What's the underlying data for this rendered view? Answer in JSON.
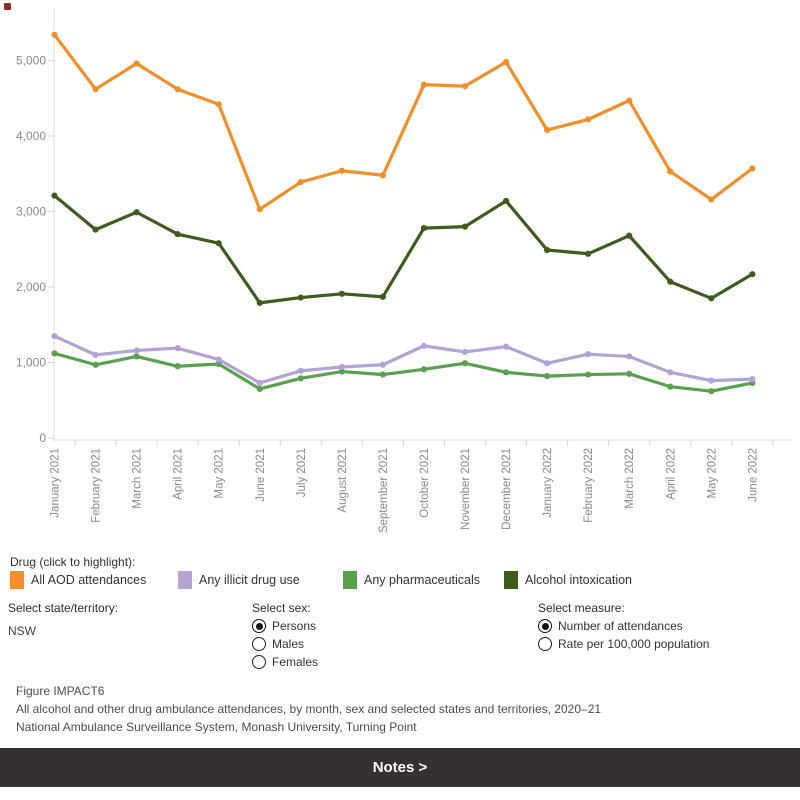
{
  "chart_data": {
    "type": "line",
    "x": [
      "January 2021",
      "February 2021",
      "March 2021",
      "April 2021",
      "May 2021",
      "June 2021",
      "July 2021",
      "August 2021",
      "September 2021",
      "October 2021",
      "November 2021",
      "December 2021",
      "January 2022",
      "February 2022",
      "March 2022",
      "April 2022",
      "May 2022",
      "June 2022"
    ],
    "series": [
      {
        "name": "All AOD attendances",
        "color": "#f28e2b",
        "values": [
          5340,
          4620,
          4960,
          4620,
          4420,
          3030,
          3390,
          3540,
          3480,
          4680,
          4660,
          4980,
          4080,
          4220,
          4470,
          3530,
          3160,
          3570
        ]
      },
      {
        "name": "Any illicit drug use",
        "color": "#b3a2d4",
        "values": [
          1350,
          1100,
          1160,
          1190,
          1040,
          730,
          890,
          940,
          970,
          1220,
          1140,
          1210,
          990,
          1110,
          1080,
          870,
          760,
          780
        ]
      },
      {
        "name": "Any pharmaceuticals",
        "color": "#59a14f",
        "values": [
          1120,
          970,
          1080,
          950,
          980,
          650,
          790,
          880,
          840,
          910,
          990,
          870,
          820,
          840,
          850,
          680,
          620,
          730
        ]
      },
      {
        "name": "Alcohol intoxication",
        "color": "#3d5c1e",
        "values": [
          3210,
          2760,
          2990,
          2700,
          2580,
          1790,
          1860,
          1910,
          1870,
          2780,
          2800,
          3140,
          2490,
          2440,
          2680,
          2070,
          1850,
          2170
        ]
      }
    ],
    "ylim": [
      0,
      5500
    ],
    "yticks": [
      0,
      1000,
      2000,
      3000,
      4000,
      5000
    ],
    "ytick_labels": [
      "0",
      "1,000",
      "2,000",
      "3,000",
      "4,000",
      "5,000"
    ],
    "grid": false,
    "xlabel": "",
    "ylabel": "",
    "legend_position": "below"
  },
  "legend": {
    "title": "Drug (click to highlight):",
    "items": [
      {
        "label": "All AOD attendances",
        "color": "#f28e2b"
      },
      {
        "label": "Any illicit drug use",
        "color": "#b3a2d4"
      },
      {
        "label": "Any pharmaceuticals",
        "color": "#59a14f"
      },
      {
        "label": "Alcohol intoxication",
        "color": "#3d5c1e"
      }
    ]
  },
  "controls": {
    "state": {
      "label": "Select state/territory:",
      "value": "NSW"
    },
    "sex": {
      "label": "Select sex:",
      "options": [
        {
          "label": "Persons",
          "selected": true
        },
        {
          "label": "Males",
          "selected": false
        },
        {
          "label": "Females",
          "selected": false
        }
      ]
    },
    "measure": {
      "label": "Select measure:",
      "options": [
        {
          "label": "Number of attendances",
          "selected": true
        },
        {
          "label": "Rate per 100,000 population",
          "selected": false
        }
      ]
    }
  },
  "footer": {
    "line1": "Figure IMPACT6",
    "line2": "All alcohol and other drug ambulance attendances, by month, sex and selected states and territories, 2020–21",
    "line3": "National Ambulance Surveillance System, Monash University, Turning Point"
  },
  "notes_button": {
    "label": "Notes >"
  }
}
